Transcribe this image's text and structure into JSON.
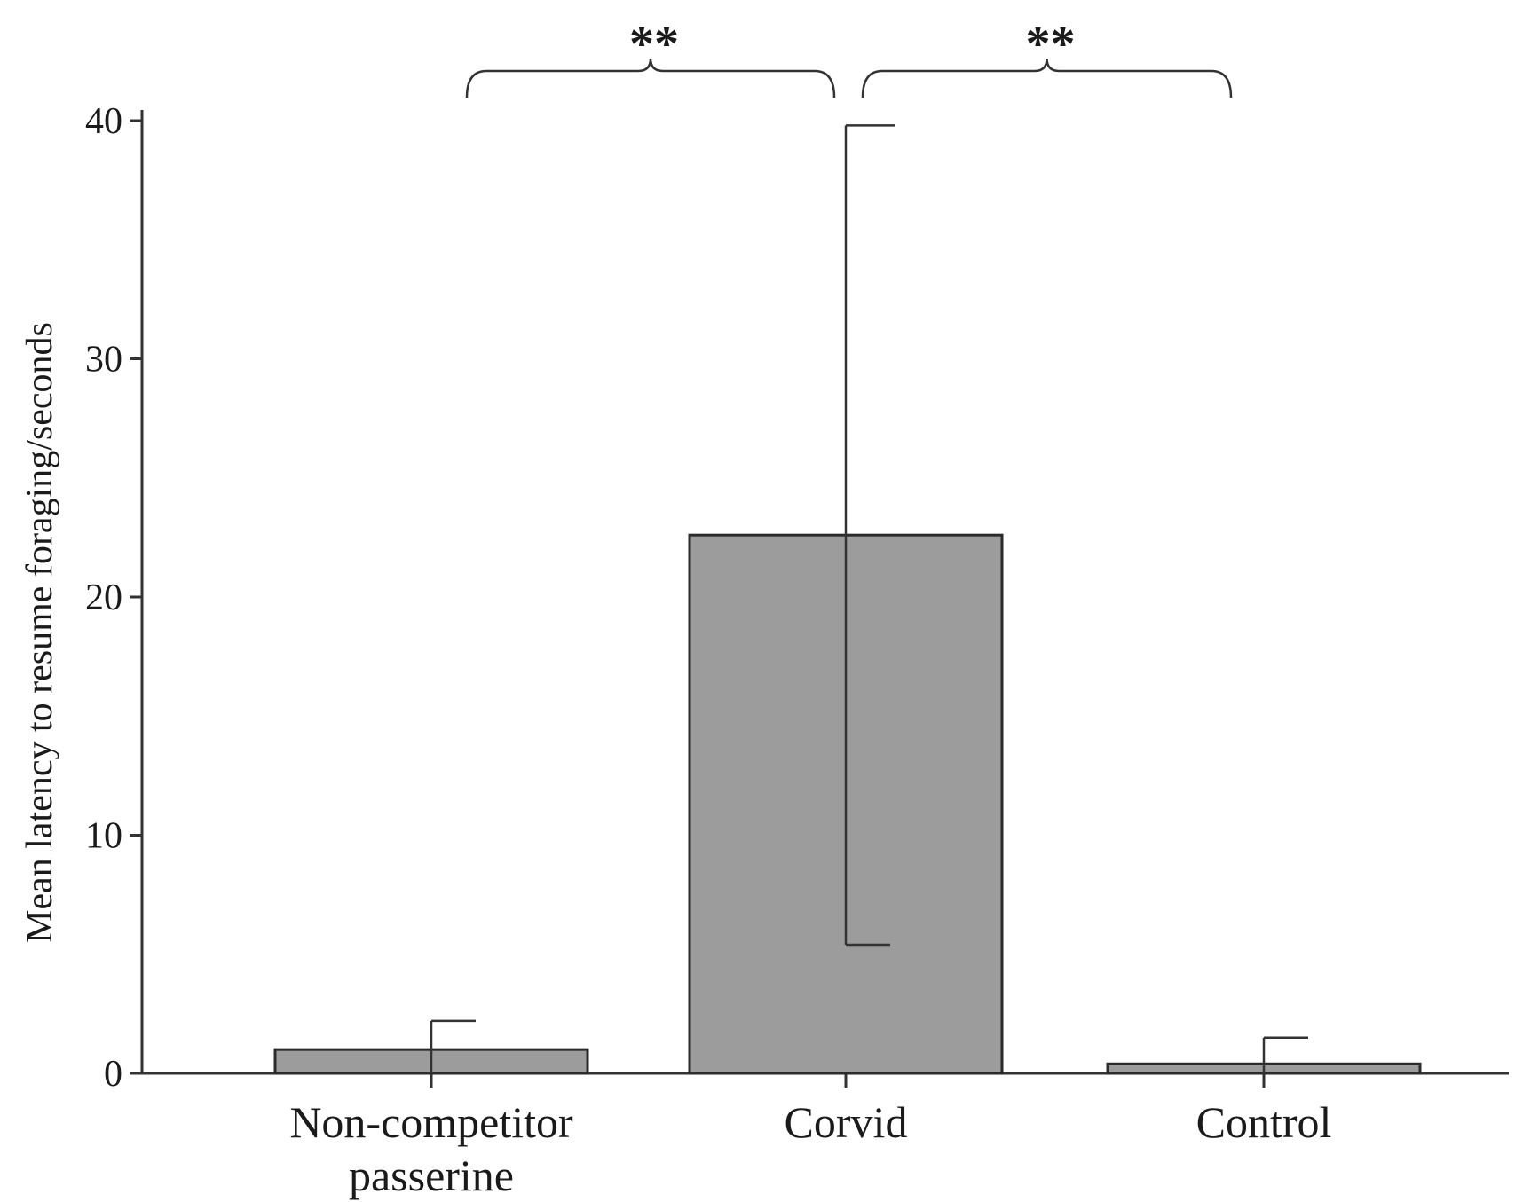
{
  "chart_data": {
    "type": "bar",
    "title": "",
    "xlabel": "",
    "ylabel": "Mean latency to resume foraging/seconds",
    "ylim": [
      0,
      40
    ],
    "yticks": [
      0,
      10,
      20,
      30,
      40
    ],
    "categories": [
      [
        "Non-competitor",
        "passerine"
      ],
      [
        "Corvid"
      ],
      [
        "Control"
      ]
    ],
    "values": [
      1.0,
      22.6,
      0.4
    ],
    "error_upper": [
      2.2,
      39.8,
      1.5
    ],
    "error_lower": [
      0.0,
      5.4,
      0.0
    ],
    "significance": [
      {
        "from": 0,
        "to": 1,
        "label": "**"
      },
      {
        "from": 1,
        "to": 2,
        "label": "**"
      }
    ],
    "grid": false,
    "legend": "none",
    "bar_color": "#9c9c9c",
    "bar_edge_color": "#2b2b2b"
  }
}
